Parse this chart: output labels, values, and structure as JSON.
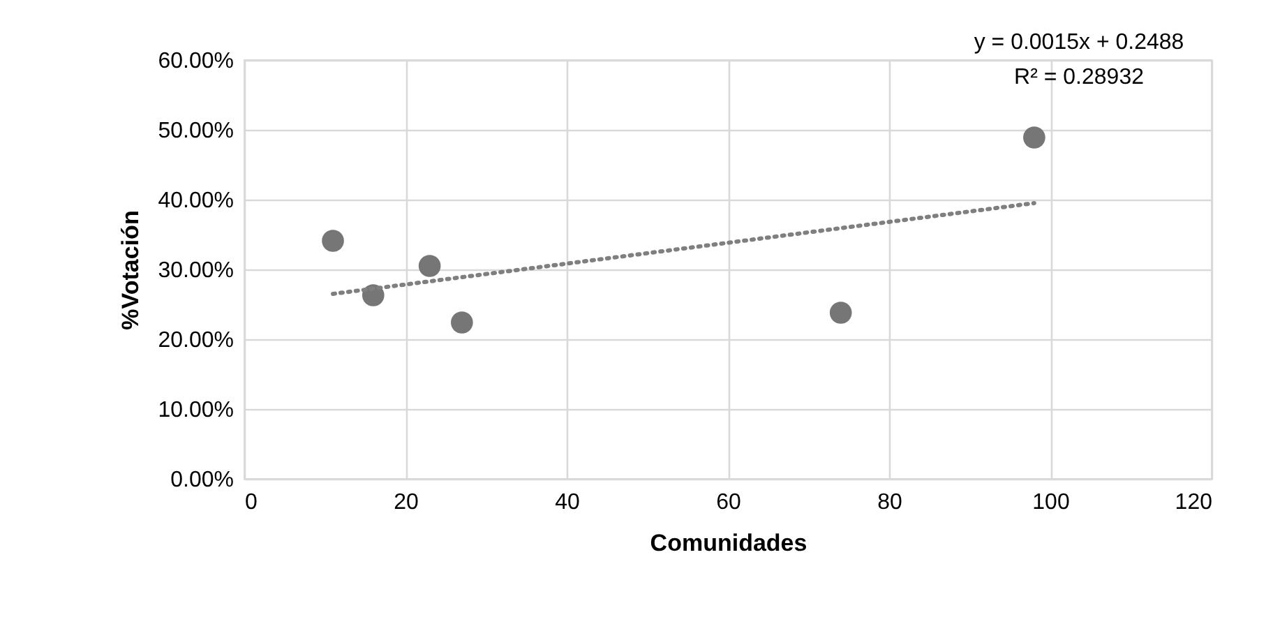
{
  "chart_data": {
    "type": "scatter",
    "xlabel": "Comunidades",
    "ylabel": "%Votación",
    "annotations": [
      "y = 0.0015x + 0.2488",
      "R² = 0.28932"
    ],
    "xlim": [
      0,
      120
    ],
    "xticks": [
      0,
      20,
      40,
      60,
      80,
      100,
      120
    ],
    "ylim": [
      0,
      60
    ],
    "yticks": [
      {
        "value": 0,
        "label": "0.00%"
      },
      {
        "value": 10,
        "label": "10.00%"
      },
      {
        "value": 20,
        "label": "20.00%"
      },
      {
        "value": 30,
        "label": "30.00%"
      },
      {
        "value": 40,
        "label": "40.00%"
      },
      {
        "value": 50,
        "label": "50.00%"
      },
      {
        "value": 60,
        "label": "60.00%"
      }
    ],
    "grid": true,
    "series": [
      {
        "color": "#767676",
        "marker": "circle",
        "x": [
          11,
          16,
          23,
          27,
          74,
          98
        ],
        "values": [
          34.1,
          26.3,
          30.5,
          22.4,
          23.8,
          48.9
        ]
      },
      {
        "type": "line",
        "color": "#7f7f7f",
        "line_style": "dotted",
        "x": [
          11,
          98
        ],
        "values": [
          26.5,
          39.5
        ]
      }
    ]
  }
}
